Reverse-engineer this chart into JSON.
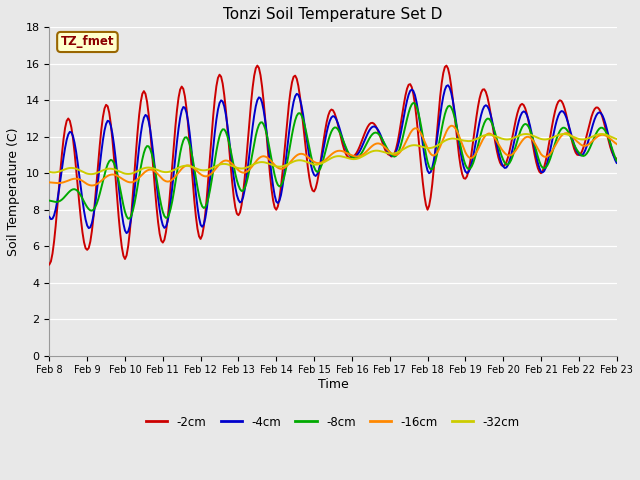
{
  "title": "Tonzi Soil Temperature Set D",
  "xlabel": "Time",
  "ylabel": "Soil Temperature (C)",
  "annotation": "TZ_fmet",
  "ylim": [
    0,
    18
  ],
  "yticks": [
    0,
    2,
    4,
    6,
    8,
    10,
    12,
    14,
    16,
    18
  ],
  "x_labels": [
    "Feb 8",
    "Feb 9",
    "Feb 10",
    "Feb 11",
    "Feb 12",
    "Feb 13",
    "Feb 14",
    "Feb 15",
    "Feb 16",
    "Feb 17",
    "Feb 18",
    "Feb 19",
    "Feb 20",
    "Feb 21",
    "Feb 22",
    "Feb 23"
  ],
  "line_colors": [
    "#cc0000",
    "#0000cc",
    "#00aa00",
    "#ff8800",
    "#cccc00"
  ],
  "line_labels": [
    "-2cm",
    "-4cm",
    "-8cm",
    "-16cm",
    "-32cm"
  ],
  "fig_bg_color": "#e8e8e8",
  "plot_bg_color": "#e8e8e8",
  "grid_color": "#ffffff",
  "annotation_bg": "#ffffcc",
  "annotation_border": "#996600",
  "annotation_text_color": "#8B0000"
}
